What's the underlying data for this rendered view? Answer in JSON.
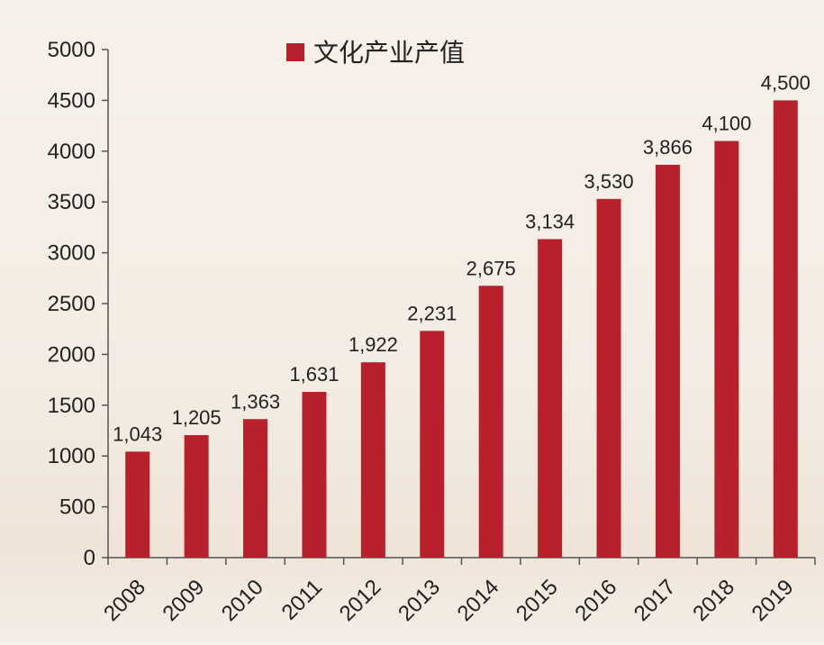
{
  "chart_data": {
    "type": "bar",
    "legend": "文化产业产值",
    "legend_position": "top-center",
    "categories": [
      "2008",
      "2009",
      "2010",
      "2011",
      "2012",
      "2013",
      "2014",
      "2015",
      "2016",
      "2017",
      "2018",
      "2019"
    ],
    "series": [
      {
        "name": "文化产业产值",
        "values": [
          1043,
          1205,
          1363,
          1631,
          1922,
          2231,
          2675,
          3134,
          3530,
          3866,
          4100,
          4500
        ],
        "labels": [
          "1,043",
          "1,205",
          "1,363",
          "1,631",
          "1,922",
          "2,231",
          "2,675",
          "3,134",
          "3,530",
          "3,866",
          "4,100",
          "4,500"
        ]
      }
    ],
    "ylim": [
      0,
      5000
    ],
    "yticks": [
      0,
      500,
      1000,
      1500,
      2000,
      2500,
      3000,
      3500,
      4000,
      4500,
      5000
    ],
    "grid": false,
    "bar_color": "#b8202b",
    "axis_color": "#555555",
    "text_color": "#222222"
  }
}
